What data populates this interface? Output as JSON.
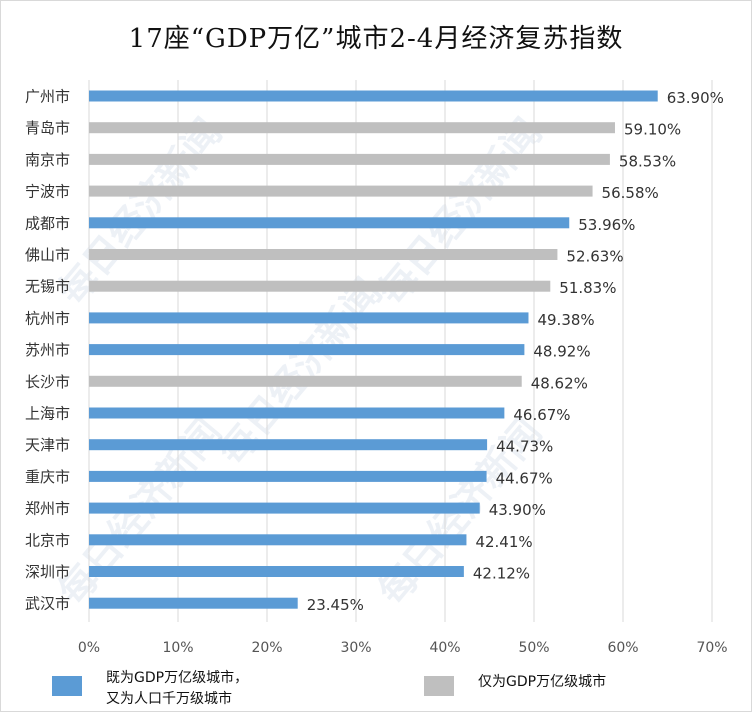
{
  "title": "17座“GDP万亿”城市2-4月经济复苏指数",
  "watermark_text": "每日经济新闻",
  "colors": {
    "both": "#5b9bd5",
    "gdp_only": "#bfbfbf",
    "grid": "#d9d9d9"
  },
  "legend": {
    "both_label": "既为GDP万亿级城市，\n又为人口千万级城市",
    "gdp_only_label": "仅为GDP万亿级城市"
  },
  "chart_data": {
    "type": "bar",
    "orientation": "horizontal",
    "title": "17座“GDP万亿”城市2-4月经济复苏指数",
    "xlim": [
      0,
      70
    ],
    "x_ticks": [
      "0%",
      "10%",
      "20%",
      "30%",
      "40%",
      "50%",
      "60%",
      "70%"
    ],
    "grid": "vertical",
    "legend_position": "bottom",
    "categories": [
      "广州市",
      "青岛市",
      "南京市",
      "宁波市",
      "成都市",
      "佛山市",
      "无锡市",
      "杭州市",
      "苏州市",
      "长沙市",
      "上海市",
      "天津市",
      "重庆市",
      "郑州市",
      "北京市",
      "深圳市",
      "武汉市"
    ],
    "values": [
      63.9,
      59.1,
      58.53,
      56.58,
      53.96,
      52.63,
      51.83,
      49.38,
      48.92,
      48.62,
      46.67,
      44.73,
      44.67,
      43.9,
      42.41,
      42.12,
      23.45
    ],
    "value_labels": [
      "63.90%",
      "59.10%",
      "58.53%",
      "56.58%",
      "53.96%",
      "52.63%",
      "51.83%",
      "49.38%",
      "48.92%",
      "48.62%",
      "46.67%",
      "44.73%",
      "44.67%",
      "43.90%",
      "42.41%",
      "42.12%",
      "23.45%"
    ],
    "groups": [
      "both",
      "gdp_only",
      "gdp_only",
      "gdp_only",
      "both",
      "gdp_only",
      "gdp_only",
      "both",
      "both",
      "gdp_only",
      "both",
      "both",
      "both",
      "both",
      "both",
      "both",
      "both"
    ],
    "series": [
      {
        "name": "既为GDP万亿级城市，又为人口千万级城市",
        "key": "both"
      },
      {
        "name": "仅为GDP万亿级城市",
        "key": "gdp_only"
      }
    ]
  }
}
